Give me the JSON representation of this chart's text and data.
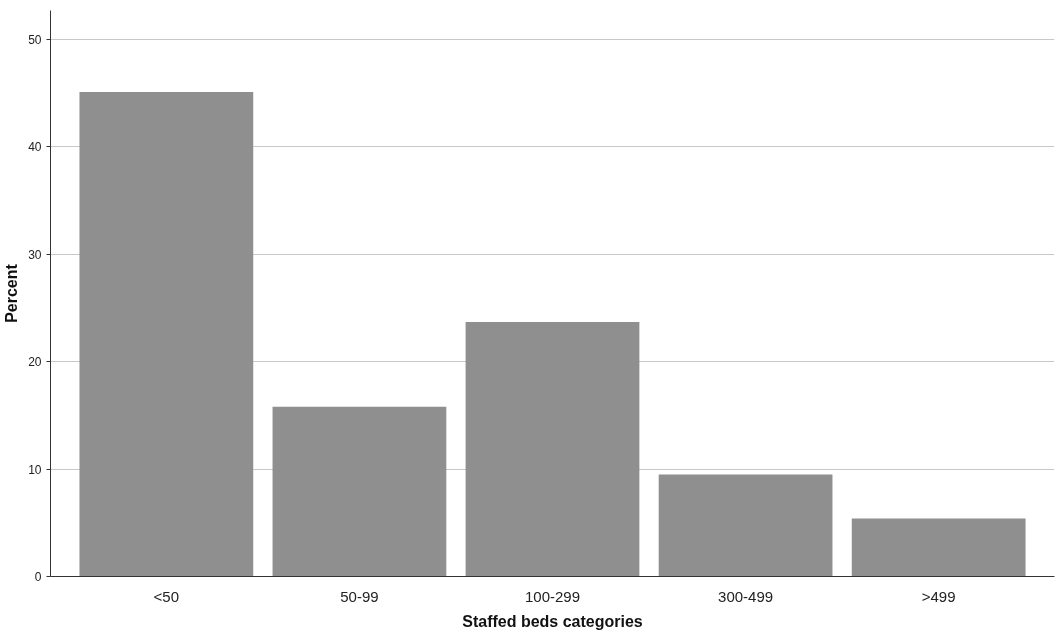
{
  "chart_data": {
    "type": "bar",
    "xlabel": "Staffed beds categories",
    "ylabel": "Percent",
    "categories": [
      "<50",
      "50-99",
      "100-299",
      "300-499",
      ">499"
    ],
    "values": [
      45.1,
      15.8,
      23.7,
      9.5,
      5.4
    ],
    "color": "#8f8f8f",
    "ylim": [
      0,
      52.7
    ],
    "yticks": [
      0,
      10,
      20,
      30,
      40,
      50
    ],
    "grid": "y"
  }
}
